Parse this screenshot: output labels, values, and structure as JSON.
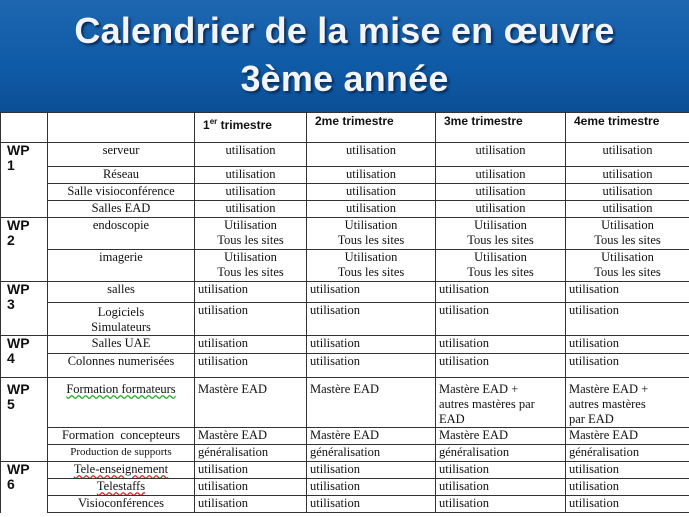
{
  "title": {
    "line1": "Calendrier de la mise en œuvre",
    "line2": "3ème année"
  },
  "headers": {
    "q1_prefix": "1",
    "q1_sup": "er",
    "q1_suffix": " trimestre",
    "q2": "2me trimestre",
    "q3": "3me trimestre",
    "q4": "4eme trimestre"
  },
  "wp": {
    "wp1": "WP\n1",
    "wp2": "WP\n2",
    "wp3": "WP\n3",
    "wp4": "WP\n4",
    "wp5": "WP\n5",
    "wp6": "WP\n6"
  },
  "rows": [
    {
      "task": "serveur",
      "q1": "utilisation",
      "q2": "utilisation",
      "q3": "utilisation",
      "q4": "utilisation"
    },
    {
      "task": "Réseau",
      "q1": "utilisation",
      "q2": "utilisation",
      "q3": "utilisation",
      "q4": "utilisation"
    },
    {
      "task": "Salle visioconférence",
      "q1": "utilisation",
      "q2": "utilisation",
      "q3": "utilisation",
      "q4": "utilisation"
    },
    {
      "task": "Salles EAD",
      "q1": "utilisation",
      "q2": "utilisation",
      "q3": "utilisation",
      "q4": "utilisation"
    },
    {
      "task": "endoscopie",
      "q1": "Utilisation\nTous les sites",
      "q2": "Utilisation\nTous les sites",
      "q3": "Utilisation\nTous les sites",
      "q4": "Utilisation\nTous les sites"
    },
    {
      "task": "imagerie",
      "q1": "Utilisation\nTous les sites",
      "q2": "Utilisation\nTous les sites",
      "q3": "Utilisation\nTous les sites",
      "q4": "Utilisation\nTous les sites"
    },
    {
      "task": "salles",
      "q1": "utilisation",
      "q2": "utilisation",
      "q3": "utilisation",
      "q4": "utilisation"
    },
    {
      "task": "Logiciels\nSimulateurs",
      "q1": "utilisation",
      "q2": "utilisation",
      "q3": "utilisation",
      "q4": "utilisation"
    },
    {
      "task": "Salles UAE",
      "q1": "utilisation",
      "q2": "utilisation",
      "q3": "utilisation",
      "q4": "utilisation"
    },
    {
      "task": "Colonnes numerisées",
      "q1": "utilisation",
      "q2": "utilisation",
      "q3": "utilisation",
      "q4": "utilisation"
    },
    {
      "task": "Formation formateurs",
      "q1": "Mastère EAD",
      "q2": "Mastère EAD",
      "q3": "Mastère EAD +\nautres mastères par\nEAD",
      "q4": "Mastère EAD +\nautres mastères\npar EAD"
    },
    {
      "task": "Formation  concepteurs",
      "q1": "Mastère EAD",
      "q2": "Mastère EAD",
      "q3": "Mastère EAD",
      "q4": "Mastère EAD"
    },
    {
      "task": "Production de supports",
      "q1": "généralisation",
      "q2": "généralisation",
      "q3": "généralisation",
      "q4": "généralisation"
    },
    {
      "task": "Tele-enseignement",
      "q1": "utilisation",
      "q2": "utilisation",
      "q3": "utilisation",
      "q4": "utilisation"
    },
    {
      "task": "Telestaffs",
      "q1": "utilisation",
      "q2": "utilisation",
      "q3": "utilisation",
      "q4": "utilisation"
    },
    {
      "task": "Visioconférences",
      "q1": "utilisation",
      "q2": "utilisation",
      "q3": "utilisation",
      "q4": "utilisation"
    }
  ]
}
